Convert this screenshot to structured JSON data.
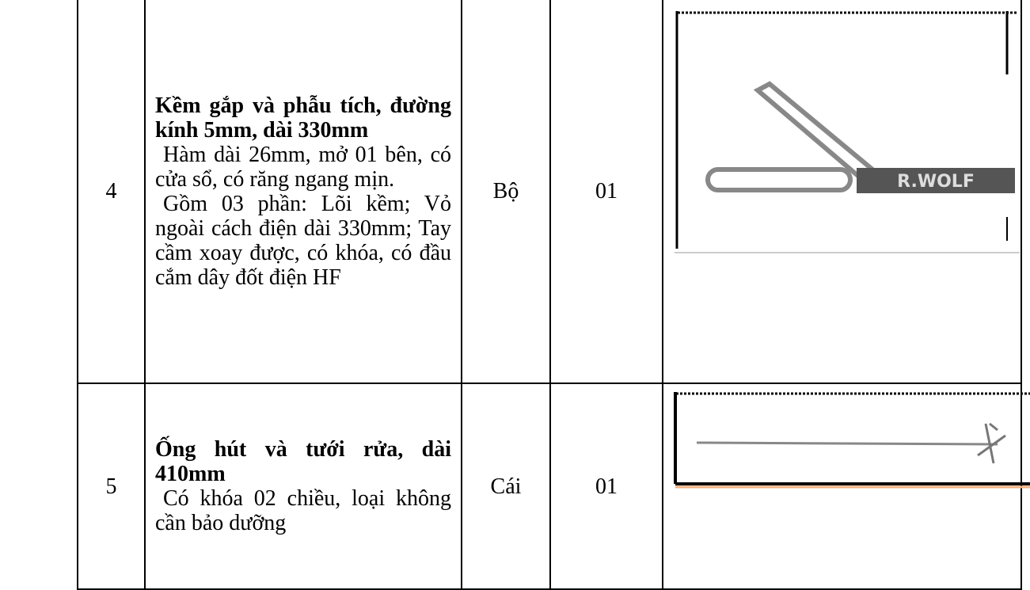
{
  "table": {
    "rows": [
      {
        "number": "4",
        "title": "Kềm gắp và phẫu tích, đường kính 5mm, dài 330mm",
        "description": [
          "Hàm dài 26mm, mở 01 bên, có cửa sổ, có răng ngang mịn.",
          "Gồm 03 phần: Lõi kềm; Vỏ ngoài cách điện dài 330mm; Tay cầm xoay được, có khóa, có đầu cắm dây đốt điện HF"
        ],
        "unit": "Bộ",
        "quantity": "01",
        "image_text": "R.WOLF"
      },
      {
        "number": "5",
        "title": "Ống hút và tưới rửa, dài 410mm",
        "description": [
          "Có khóa 02 chiều, loại không cần bảo dưỡng"
        ],
        "unit": "Cái",
        "quantity": "01"
      }
    ]
  }
}
